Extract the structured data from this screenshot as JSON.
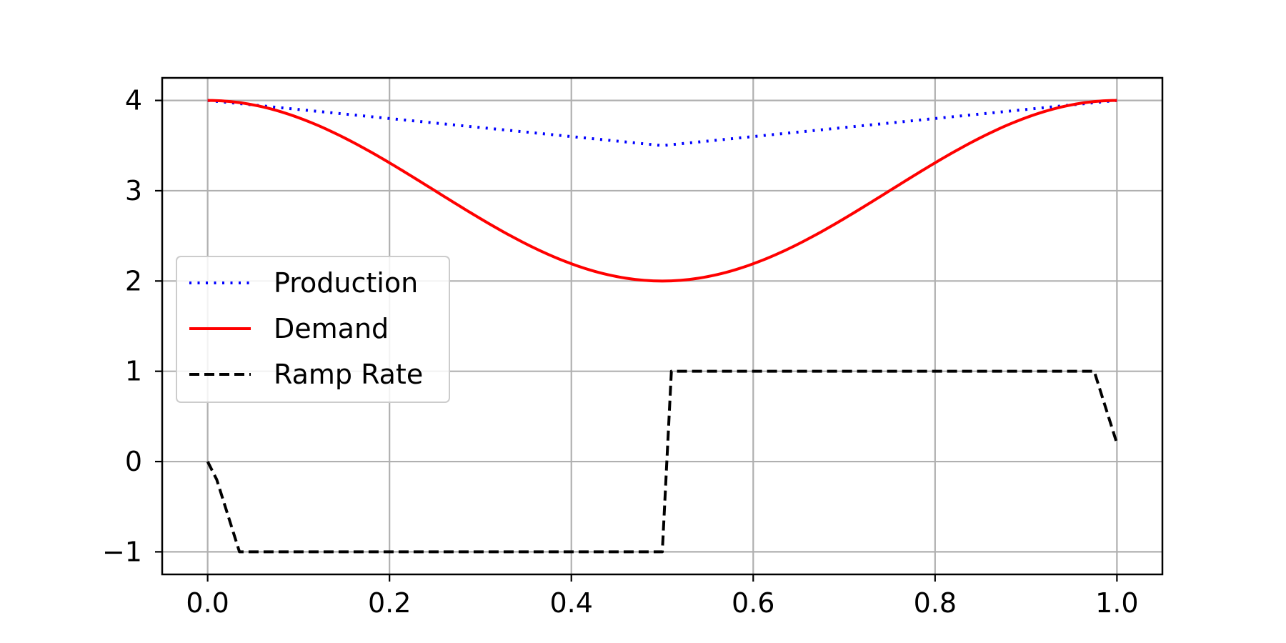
{
  "chart_data": {
    "type": "line",
    "title": "",
    "xlabel": "",
    "ylabel": "",
    "xlim": [
      -0.05,
      1.05
    ],
    "ylim": [
      -1.25,
      4.25
    ],
    "xticks": [
      0.0,
      0.2,
      0.4,
      0.6,
      0.8,
      1.0
    ],
    "xtick_labels": [
      "0.0",
      "0.2",
      "0.4",
      "0.6",
      "0.8",
      "1.0"
    ],
    "yticks": [
      -1,
      0,
      1,
      2,
      3,
      4
    ],
    "ytick_labels": [
      "−1",
      "0",
      "1",
      "2",
      "3",
      "4"
    ],
    "grid": true,
    "legend_position": "center-left",
    "series": [
      {
        "name": "Production",
        "color": "#0000ff",
        "style": "dotted",
        "x": [
          0.0,
          0.5,
          1.0
        ],
        "y": [
          4.0,
          3.5,
          4.0
        ]
      },
      {
        "name": "Demand",
        "color": "#ff0000",
        "style": "solid",
        "function": "3 + cos(2*pi*x)",
        "x": [
          0.0,
          0.05,
          0.1,
          0.15,
          0.2,
          0.25,
          0.3,
          0.35,
          0.4,
          0.45,
          0.5,
          0.55,
          0.6,
          0.65,
          0.7,
          0.75,
          0.8,
          0.85,
          0.9,
          0.95,
          1.0
        ],
        "y": [
          4.0,
          3.95,
          3.81,
          3.59,
          3.31,
          3.0,
          2.69,
          2.41,
          2.19,
          2.05,
          2.0,
          2.05,
          2.19,
          2.41,
          2.69,
          3.0,
          3.31,
          3.59,
          3.81,
          3.95,
          4.0
        ]
      },
      {
        "name": "Ramp Rate",
        "color": "#000000",
        "style": "dashed",
        "x": [
          0.0,
          0.01,
          0.035,
          0.5,
          0.51,
          0.975,
          1.0
        ],
        "y": [
          0.0,
          -0.2,
          -1.0,
          -1.0,
          1.0,
          1.0,
          0.2
        ]
      }
    ]
  }
}
